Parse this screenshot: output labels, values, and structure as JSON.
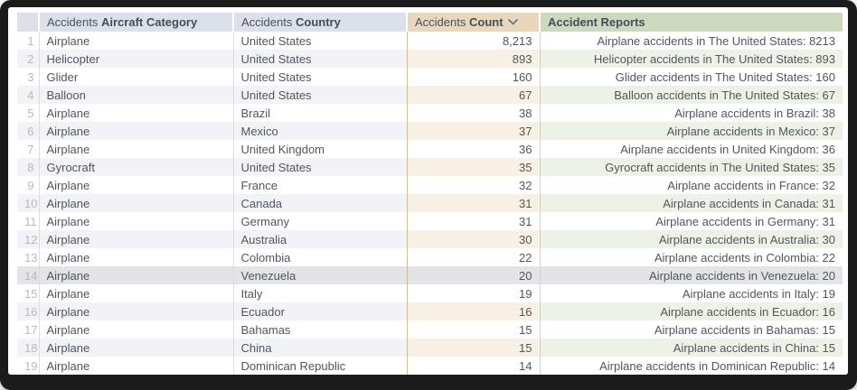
{
  "table": {
    "columns": [
      {
        "prefix": "Accidents",
        "label": "Aircraft Category"
      },
      {
        "prefix": "Accidents",
        "label": "Country"
      },
      {
        "prefix": "Accidents",
        "label": "Count",
        "sort": "descending"
      },
      {
        "prefix": "",
        "label": "Accident Reports"
      }
    ],
    "hover_row": 14,
    "rows": [
      {
        "num": "1",
        "category": "Airplane",
        "country": "United States",
        "count": "8,213",
        "report": "Airplane accidents in The United States: 8213"
      },
      {
        "num": "2",
        "category": "Helicopter",
        "country": "United States",
        "count": "893",
        "report": "Helicopter accidents in The United States: 893"
      },
      {
        "num": "3",
        "category": "Glider",
        "country": "United States",
        "count": "160",
        "report": "Glider accidents in The United States: 160"
      },
      {
        "num": "4",
        "category": "Balloon",
        "country": "United States",
        "count": "67",
        "report": "Balloon accidents in The United States: 67"
      },
      {
        "num": "5",
        "category": "Airplane",
        "country": "Brazil",
        "count": "38",
        "report": "Airplane accidents in Brazil: 38"
      },
      {
        "num": "6",
        "category": "Airplane",
        "country": "Mexico",
        "count": "37",
        "report": "Airplane accidents in Mexico: 37"
      },
      {
        "num": "7",
        "category": "Airplane",
        "country": "United Kingdom",
        "count": "36",
        "report": "Airplane accidents in United Kingdom: 36"
      },
      {
        "num": "8",
        "category": "Gyrocraft",
        "country": "United States",
        "count": "35",
        "report": "Gyrocraft accidents in The United States: 35"
      },
      {
        "num": "9",
        "category": "Airplane",
        "country": "France",
        "count": "32",
        "report": "Airplane accidents in France: 32"
      },
      {
        "num": "10",
        "category": "Airplane",
        "country": "Canada",
        "count": "31",
        "report": "Airplane accidents in Canada: 31"
      },
      {
        "num": "11",
        "category": "Airplane",
        "country": "Germany",
        "count": "31",
        "report": "Airplane accidents in Germany: 31"
      },
      {
        "num": "12",
        "category": "Airplane",
        "country": "Australia",
        "count": "30",
        "report": "Airplane accidents in Australia: 30"
      },
      {
        "num": "13",
        "category": "Airplane",
        "country": "Colombia",
        "count": "22",
        "report": "Airplane accidents in Colombia: 22"
      },
      {
        "num": "14",
        "category": "Airplane",
        "country": "Venezuela",
        "count": "20",
        "report": "Airplane accidents in Venezuela: 20"
      },
      {
        "num": "15",
        "category": "Airplane",
        "country": "Italy",
        "count": "19",
        "report": "Airplane accidents in Italy: 19"
      },
      {
        "num": "16",
        "category": "Airplane",
        "country": "Ecuador",
        "count": "16",
        "report": "Airplane accidents in Ecuador: 16"
      },
      {
        "num": "17",
        "category": "Airplane",
        "country": "Bahamas",
        "count": "15",
        "report": "Airplane accidents in Bahamas: 15"
      },
      {
        "num": "18",
        "category": "Airplane",
        "country": "China",
        "count": "15",
        "report": "Airplane accidents in China: 15"
      },
      {
        "num": "19",
        "category": "Airplane",
        "country": "Dominican Republic",
        "count": "14",
        "report": "Airplane accidents in Dominican Republic: 14"
      }
    ]
  },
  "colors": {
    "header_bg": "#dce1e9",
    "sorted_count_header_bg": "#e8d7bc",
    "reports_header_bg": "#cbd9bf",
    "even_row_tint": "#f1f3f7",
    "even_row_count_tint": "#f7f1e5",
    "even_row_reports_tint": "#edf2e6",
    "hover_row_bg": "#e2e4e8",
    "frame": "#1b1b1b"
  }
}
